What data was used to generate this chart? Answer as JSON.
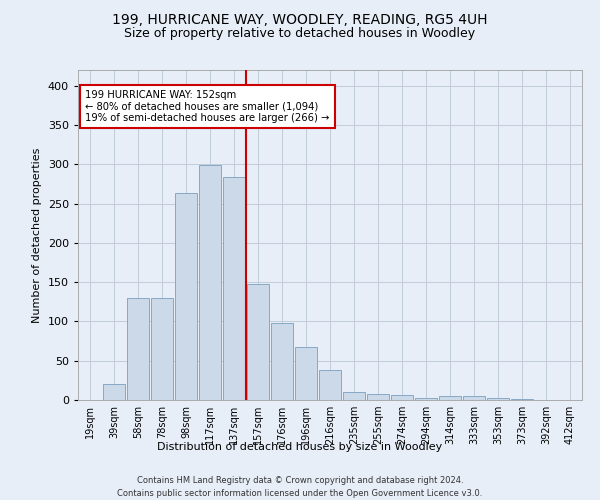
{
  "title1": "199, HURRICANE WAY, WOODLEY, READING, RG5 4UH",
  "title2": "Size of property relative to detached houses in Woodley",
  "xlabel": "Distribution of detached houses by size in Woodley",
  "ylabel": "Number of detached properties",
  "footer1": "Contains HM Land Registry data © Crown copyright and database right 2024.",
  "footer2": "Contains public sector information licensed under the Open Government Licence v3.0.",
  "annotation_line1": "199 HURRICANE WAY: 152sqm",
  "annotation_line2": "← 80% of detached houses are smaller (1,094)",
  "annotation_line3": "19% of semi-detached houses are larger (266) →",
  "bar_color": "#ccd9e8",
  "bar_edge_color": "#7a9fc0",
  "vline_color": "#cc0000",
  "vline_x": 7,
  "background_color": "#e8eef8",
  "annotation_box_edge": "#cc0000",
  "annotation_box_face": "#ffffff",
  "categories": [
    "19sqm",
    "39sqm",
    "58sqm",
    "78sqm",
    "98sqm",
    "117sqm",
    "137sqm",
    "157sqm",
    "176sqm",
    "196sqm",
    "216sqm",
    "235sqm",
    "255sqm",
    "274sqm",
    "294sqm",
    "314sqm",
    "333sqm",
    "353sqm",
    "373sqm",
    "392sqm",
    "412sqm"
  ],
  "values": [
    0,
    21,
    130,
    130,
    263,
    299,
    284,
    148,
    98,
    68,
    38,
    10,
    8,
    6,
    3,
    5,
    5,
    3,
    1,
    0,
    0
  ],
  "ylim": [
    0,
    420
  ],
  "yticks": [
    0,
    50,
    100,
    150,
    200,
    250,
    300,
    350,
    400
  ],
  "grid_color": "#c0ccd8",
  "title1_fontsize": 10,
  "title2_fontsize": 9,
  "ylabel_fontsize": 8,
  "xtick_fontsize": 7,
  "ytick_fontsize": 8,
  "xlabel_fontsize": 8,
  "footer_fontsize": 6
}
